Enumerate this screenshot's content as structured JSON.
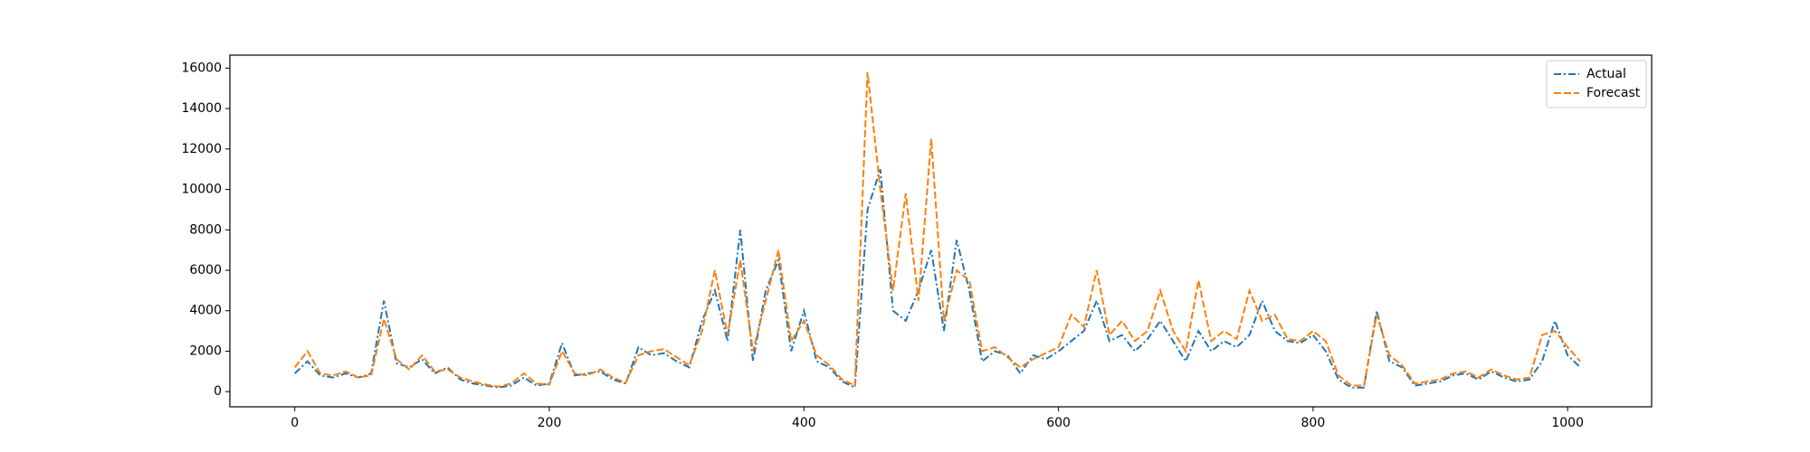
{
  "chart_data": {
    "type": "line",
    "x": [
      0,
      10,
      20,
      30,
      40,
      50,
      60,
      70,
      80,
      90,
      100,
      110,
      120,
      130,
      140,
      150,
      160,
      170,
      180,
      190,
      200,
      210,
      220,
      230,
      240,
      250,
      260,
      270,
      280,
      290,
      300,
      310,
      320,
      330,
      340,
      350,
      360,
      370,
      380,
      390,
      400,
      410,
      420,
      430,
      440,
      450,
      460,
      470,
      480,
      490,
      500,
      510,
      520,
      530,
      540,
      550,
      560,
      570,
      580,
      590,
      600,
      610,
      620,
      630,
      640,
      650,
      660,
      670,
      680,
      690,
      700,
      710,
      720,
      730,
      740,
      750,
      760,
      770,
      780,
      790,
      800,
      810,
      820,
      830,
      840,
      850,
      860,
      870,
      880,
      890,
      900,
      910,
      920,
      930,
      940,
      950,
      960,
      970,
      980,
      990,
      1000,
      1010
    ],
    "series": [
      {
        "name": "Actual",
        "color": "#1f77b4",
        "dash": "dashdot",
        "values": [
          900,
          1500,
          800,
          700,
          900,
          700,
          900,
          4500,
          1400,
          1200,
          1600,
          900,
          1200,
          600,
          400,
          300,
          200,
          300,
          700,
          300,
          400,
          2400,
          800,
          900,
          1000,
          600,
          400,
          2200,
          1800,
          1900,
          1500,
          1200,
          3500,
          5000,
          2500,
          8000,
          1500,
          5000,
          6500,
          2000,
          4000,
          1500,
          1200,
          500,
          200,
          9000,
          11000,
          4000,
          3500,
          5000,
          7000,
          3000,
          7500,
          5000,
          1500,
          2000,
          1800,
          900,
          1800,
          1600,
          2000,
          2500,
          3000,
          4500,
          2500,
          2800,
          2000,
          2600,
          3500,
          2500,
          1500,
          3000,
          2000,
          2500,
          2200,
          2800,
          4500,
          3000,
          2500,
          2400,
          2800,
          2000,
          600,
          200,
          200,
          4000,
          1500,
          1200,
          300,
          400,
          500,
          800,
          900,
          600,
          1000,
          700,
          500,
          600,
          1500,
          3500,
          1800,
          1200
        ]
      },
      {
        "name": "Forecast",
        "color": "#ff7f0e",
        "dash": "dashed",
        "values": [
          1200,
          2000,
          900,
          800,
          1000,
          700,
          800,
          3600,
          1600,
          1100,
          1800,
          1000,
          1100,
          700,
          500,
          350,
          250,
          400,
          900,
          400,
          350,
          2000,
          900,
          800,
          1100,
          700,
          450,
          1800,
          2000,
          2100,
          1700,
          1300,
          3000,
          6000,
          2800,
          6500,
          2000,
          4500,
          7000,
          2500,
          3500,
          1800,
          1300,
          600,
          300,
          15800,
          10000,
          5000,
          9800,
          4500,
          12500,
          3500,
          6000,
          5500,
          2000,
          2200,
          1700,
          1200,
          1600,
          1900,
          2200,
          3800,
          3200,
          6000,
          2800,
          3500,
          2500,
          3000,
          5000,
          3000,
          2000,
          5500,
          2500,
          3000,
          2600,
          5000,
          3500,
          3800,
          2600,
          2500,
          3000,
          2500,
          800,
          300,
          300,
          3800,
          1800,
          1300,
          400,
          500,
          600,
          900,
          1000,
          700,
          1100,
          800,
          600,
          700,
          2800,
          3000,
          2200,
          1500
        ]
      }
    ],
    "xlim": [
      -51,
      1066
    ],
    "xticks": [
      0,
      200,
      400,
      600,
      800,
      1000
    ],
    "ylim": [
      -750,
      16640
    ],
    "yticks": [
      0,
      2000,
      4000,
      6000,
      8000,
      10000,
      12000,
      14000,
      16000
    ],
    "legend": "upper right"
  }
}
